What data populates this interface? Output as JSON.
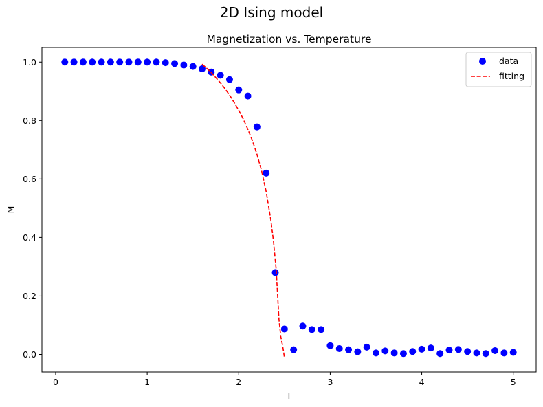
{
  "figure_title": "2D Ising model",
  "chart_data": {
    "type": "scatter",
    "title": "Magnetization vs. Temperature",
    "xlabel": "T",
    "ylabel": "M",
    "xlim": [
      -0.15,
      5.25
    ],
    "ylim": [
      -0.06,
      1.05
    ],
    "xticks": [
      0,
      1,
      2,
      3,
      4,
      5
    ],
    "yticks": [
      0.0,
      0.2,
      0.4,
      0.6,
      0.8,
      1.0
    ],
    "xtick_labels": [
      "0",
      "1",
      "2",
      "3",
      "4",
      "5"
    ],
    "ytick_labels": [
      "0.0",
      "0.2",
      "0.4",
      "0.6",
      "0.8",
      "1.0"
    ],
    "grid": false,
    "legend_position": "top-right",
    "series": [
      {
        "name": "data",
        "kind": "scatter",
        "color": "#0000ff",
        "x": [
          0.1,
          0.2,
          0.3,
          0.4,
          0.5,
          0.6,
          0.7,
          0.8,
          0.9,
          1.0,
          1.1,
          1.2,
          1.3,
          1.4,
          1.5,
          1.6,
          1.7,
          1.8,
          1.9,
          2.0,
          2.1,
          2.2,
          2.3,
          2.4,
          2.5,
          2.6,
          2.7,
          2.8,
          2.9,
          3.0,
          3.1,
          3.2,
          3.3,
          3.4,
          3.5,
          3.6,
          3.7,
          3.8,
          3.9,
          4.0,
          4.1,
          4.2,
          4.3,
          4.4,
          4.5,
          4.6,
          4.7,
          4.8,
          4.9,
          5.0
        ],
        "y": [
          1.0,
          1.0,
          1.0,
          1.0,
          1.0,
          1.0,
          1.0,
          1.0,
          1.0,
          1.0,
          1.0,
          0.998,
          0.995,
          0.99,
          0.985,
          0.977,
          0.966,
          0.955,
          0.94,
          0.905,
          0.884,
          0.778,
          0.62,
          0.28,
          0.087,
          0.016,
          0.097,
          0.085,
          0.085,
          0.03,
          0.02,
          0.016,
          0.009,
          0.025,
          0.005,
          0.012,
          0.005,
          0.003,
          0.01,
          0.018,
          0.022,
          0.003,
          0.015,
          0.017,
          0.01,
          0.005,
          0.003,
          0.013,
          0.005,
          0.007
        ]
      },
      {
        "name": "fitting",
        "kind": "line",
        "style": "dashed",
        "color": "#ff0000",
        "x": [
          1.6,
          1.65,
          1.7,
          1.75,
          1.8,
          1.85,
          1.9,
          1.95,
          2.0,
          2.05,
          2.1,
          2.15,
          2.2,
          2.25,
          2.3,
          2.35,
          2.38,
          2.41,
          2.44,
          2.46,
          2.48,
          2.49,
          2.5
        ],
        "y": [
          0.993,
          0.979,
          0.964,
          0.947,
          0.929,
          0.909,
          0.887,
          0.862,
          0.835,
          0.805,
          0.77,
          0.731,
          0.684,
          0.628,
          0.557,
          0.462,
          0.388,
          0.288,
          0.12,
          0.06,
          0.03,
          0.01,
          -0.012
        ]
      }
    ]
  }
}
